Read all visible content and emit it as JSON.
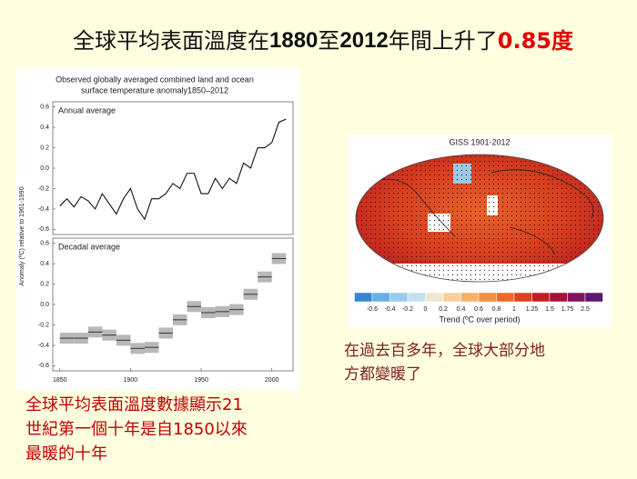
{
  "title": {
    "segments": [
      "全球平均表面溫度在",
      "1880",
      "至",
      "2012",
      "年間上升了",
      "0.85度"
    ]
  },
  "figure": {
    "title": [
      "Observed globally averaged combined land and ocean",
      "surface temperature anomaly1850–2012"
    ],
    "ylabel": "Anomaly (ºC) relative to 1961-1990"
  },
  "chart_data": [
    {
      "type": "line",
      "title": "Annual average",
      "color": "#111111",
      "x": [
        1850,
        1855,
        1860,
        1865,
        1870,
        1875,
        1880,
        1885,
        1890,
        1895,
        1900,
        1905,
        1910,
        1915,
        1920,
        1925,
        1930,
        1935,
        1940,
        1945,
        1950,
        1955,
        1960,
        1965,
        1970,
        1975,
        1980,
        1985,
        1990,
        1995,
        2000,
        2005,
        2010
      ],
      "values": [
        -0.37,
        -0.3,
        -0.38,
        -0.28,
        -0.32,
        -0.4,
        -0.25,
        -0.35,
        -0.45,
        -0.3,
        -0.2,
        -0.4,
        -0.5,
        -0.3,
        -0.3,
        -0.25,
        -0.15,
        -0.2,
        -0.05,
        -0.05,
        -0.25,
        -0.25,
        -0.1,
        -0.2,
        -0.1,
        -0.15,
        0.05,
        0.0,
        0.2,
        0.2,
        0.25,
        0.45,
        0.48
      ],
      "xlim": [
        1845,
        2015
      ],
      "ylim": [
        -0.65,
        0.65
      ],
      "yticks": [
        0.6,
        0.4,
        0.2,
        {
          "value": 0,
          "label": "0.0"
        },
        -0.2,
        -0.4,
        -0.6
      ]
    },
    {
      "type": "scatter",
      "title": "Decadal average",
      "color": "#9a9a9a",
      "x": [
        1850,
        1860,
        1870,
        1880,
        1890,
        1900,
        1910,
        1920,
        1930,
        1940,
        1950,
        1960,
        1970,
        1980,
        1990,
        2000
      ],
      "values": [
        -0.33,
        -0.33,
        -0.27,
        -0.3,
        -0.35,
        -0.43,
        -0.42,
        -0.28,
        -0.15,
        -0.02,
        -0.08,
        -0.07,
        -0.05,
        0.1,
        0.27,
        0.45
      ],
      "xlim": [
        1845,
        2015
      ],
      "ylim": [
        -0.65,
        0.65
      ],
      "xticks": [
        1850,
        1900,
        1950,
        2000
      ],
      "yticks": [
        0.6,
        0.4,
        0.2,
        {
          "value": 0,
          "label": "0.0"
        },
        -0.2,
        -0.4,
        -0.6
      ]
    }
  ],
  "map": {
    "title": "GISS 1901-2012",
    "colorbar_label": "Trend (ºC over period)",
    "colorbar_ticks": [
      -0.6,
      -0.4,
      -0.2,
      0,
      0.2,
      0.4,
      0.6,
      0.8,
      1,
      1.25,
      1.5,
      1.75,
      2.5
    ],
    "colorbar_colors": [
      "#3a86d1",
      "#6aaee3",
      "#98cbee",
      "#c4e2f4",
      "#f3e7d3",
      "#f9cfa0",
      "#f7b06c",
      "#f38e3f",
      "#ec6a26",
      "#dd4120",
      "#c41f24",
      "#a11236",
      "#82135a",
      "#5f1870"
    ]
  },
  "caption_right": [
    "在過去百多年，全球大部分地",
    "方都變暖了"
  ],
  "caption_left": [
    "全球平均表面溫度數據顯示21",
    "世紀第一個十年是自1850以來",
    "最暖的十年"
  ]
}
